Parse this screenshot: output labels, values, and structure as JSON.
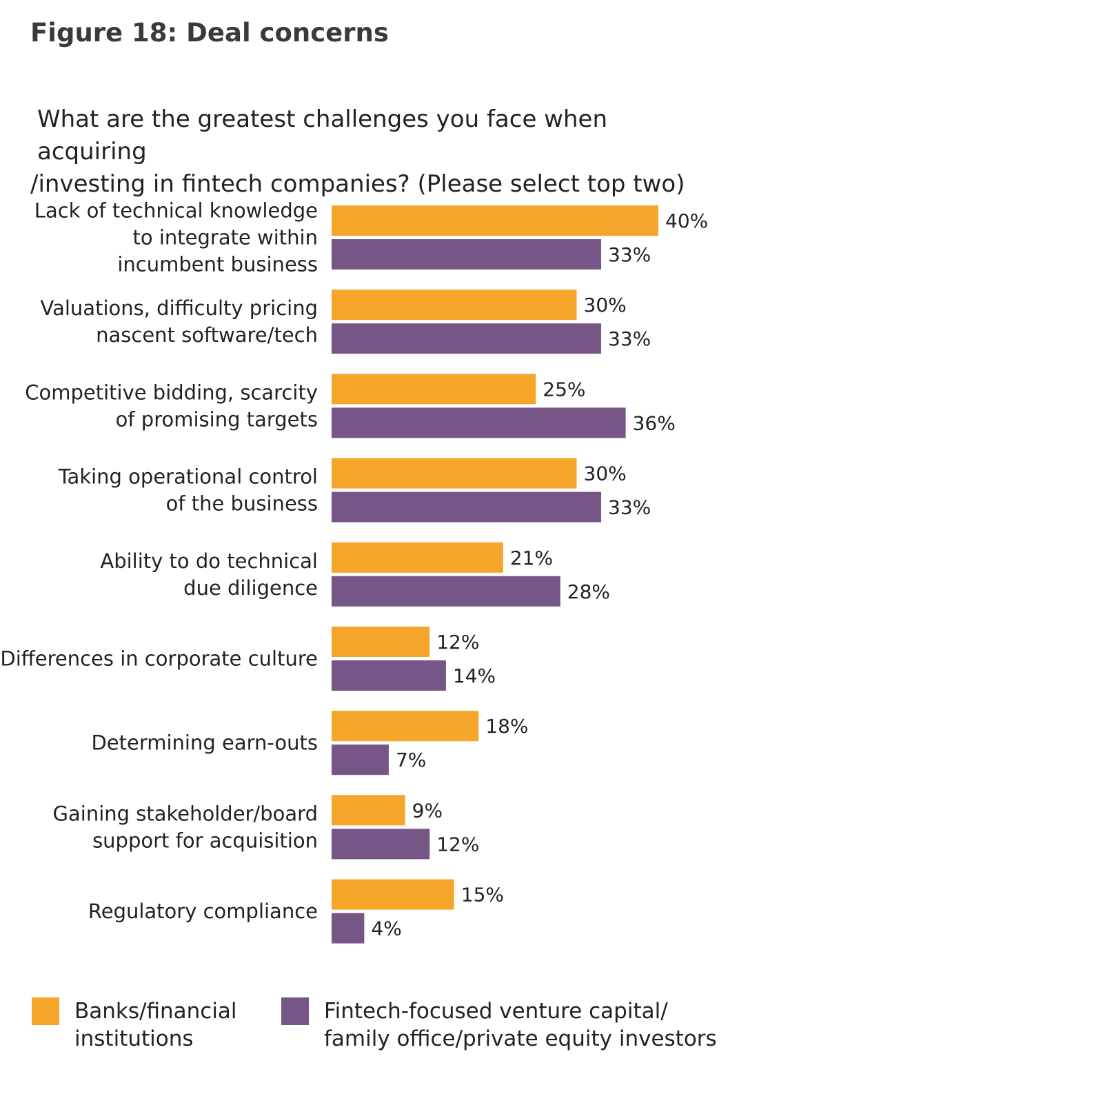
{
  "figure": {
    "title": "Figure 18: Deal concerns",
    "question_lines": [
      "What are the greatest challenges you face when acquiring",
      "/investing in fintech companies? (Please select top two)"
    ]
  },
  "colors": {
    "banks": "#F5A52A",
    "vc": "#765587"
  },
  "chart_data": {
    "type": "bar",
    "orientation": "horizontal",
    "unit": "%",
    "xlim": [
      0,
      40
    ],
    "grid": false,
    "legend_position": "bottom-left",
    "categories": [
      [
        "Lack of technical knowledge",
        "to integrate within",
        "incumbent business"
      ],
      [
        "Valuations, difficulty pricing",
        "nascent software/tech"
      ],
      [
        "Competitive bidding, scarcity",
        "of promising targets"
      ],
      [
        "Taking operational control",
        "of the business"
      ],
      [
        "Ability to do technical",
        "due diligence"
      ],
      [
        "Differences in corporate culture"
      ],
      [
        "Determining earn-outs"
      ],
      [
        "Gaining stakeholder/board",
        "support for acquisition"
      ],
      [
        "Regulatory compliance"
      ]
    ],
    "series": [
      {
        "name": "Banks/financial institutions",
        "legend_lines": [
          "Banks/financial",
          "institutions"
        ],
        "values": [
          40,
          30,
          25,
          30,
          21,
          12,
          18,
          9,
          15
        ],
        "labels": [
          "40%",
          "30%",
          "25%",
          "30%",
          "21%",
          "12%",
          "18%",
          "9%",
          "15%"
        ]
      },
      {
        "name": "Fintech-focused venture capital/ family office/private equity investors",
        "legend_lines": [
          "Fintech-focused venture capital/",
          "family office/private equity investors"
        ],
        "values": [
          33,
          33,
          36,
          33,
          28,
          14,
          7,
          12,
          4
        ],
        "labels": [
          "33%",
          "33%",
          "36%",
          "33%",
          "28%",
          "14%",
          "7%",
          "12%",
          "4%"
        ]
      }
    ]
  }
}
